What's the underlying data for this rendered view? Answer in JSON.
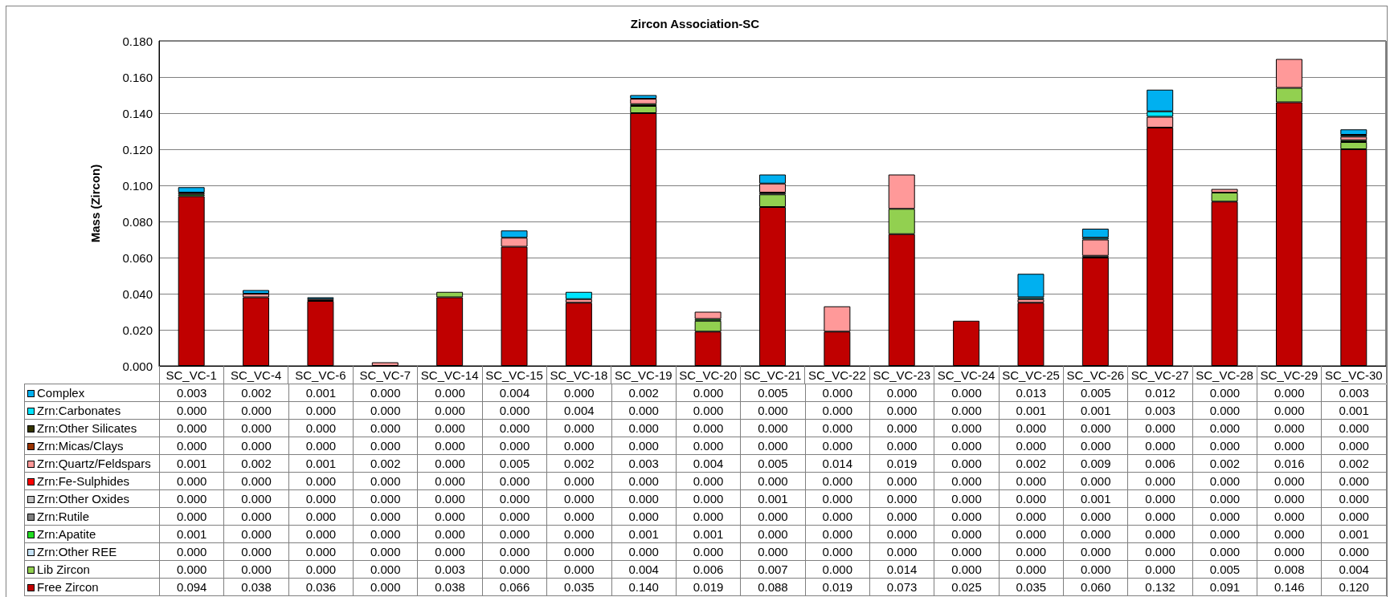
{
  "chart_data": {
    "type": "bar",
    "title": "Zircon Association-SC",
    "ylabel": "Mass (Zircon)",
    "categories": [
      "SC_VC-1",
      "SC_VC-4",
      "SC_VC-6",
      "SC_VC-7",
      "SC_VC-14",
      "SC_VC-15",
      "SC_VC-18",
      "SC_VC-19",
      "SC_VC-20",
      "SC_VC-21",
      "SC_VC-22",
      "SC_VC-23",
      "SC_VC-24",
      "SC_VC-25",
      "SC_VC-26",
      "SC_VC-27",
      "SC_VC-28",
      "SC_VC-29",
      "SC_VC-30"
    ],
    "stacked": true,
    "grid": "y",
    "legend": "bottom left",
    "ylim": [
      0,
      0.18
    ],
    "yticks": [
      {
        "value": 0,
        "label": "0.000"
      },
      {
        "value": 0.02,
        "label": "0.020"
      },
      {
        "value": 0.04,
        "label": "0.040"
      },
      {
        "value": 0.06,
        "label": "0.060"
      },
      {
        "value": 0.08,
        "label": "0.080"
      },
      {
        "value": 0.1,
        "label": "0.100"
      },
      {
        "value": 0.12,
        "label": "0.120"
      },
      {
        "value": 0.14,
        "label": "0.140"
      },
      {
        "value": 0.16,
        "label": "0.160"
      },
      {
        "value": 0.18,
        "label": "0.180"
      }
    ],
    "series": [
      {
        "name": "Free Zircon",
        "color": "#c00000",
        "values": [
          0.094,
          0.038,
          0.036,
          0,
          0.038,
          0.066,
          0.035,
          0.14,
          0.019,
          0.088,
          0.019,
          0.073,
          0.025,
          0.035,
          0.06,
          0.132,
          0.091,
          0.146,
          0.12
        ],
        "value_labels": [
          "0.094",
          "0.038",
          "0.036",
          "0.000",
          "0.038",
          "0.066",
          "0.035",
          "0.140",
          "0.019",
          "0.088",
          "0.019",
          "0.073",
          "0.025",
          "0.035",
          "0.060",
          "0.132",
          "0.091",
          "0.146",
          "0.120"
        ]
      },
      {
        "name": "Lib Zircon",
        "color": "#92d050",
        "values": [
          0,
          0,
          0,
          0,
          0.003,
          0,
          0,
          0.004,
          0.006,
          0.007,
          0,
          0.014,
          0,
          0,
          0,
          0,
          0.005,
          0.008,
          0.004
        ],
        "value_labels": [
          "0.000",
          "0.000",
          "0.000",
          "0.000",
          "0.003",
          "0.000",
          "0.000",
          "0.004",
          "0.006",
          "0.007",
          "0.000",
          "0.014",
          "0.000",
          "0.000",
          "0.000",
          "0.000",
          "0.005",
          "0.008",
          "0.004"
        ]
      },
      {
        "name": "Zrn:Other REE",
        "color": "#c6e2f7",
        "values": [
          0,
          0,
          0,
          0,
          0,
          0,
          0,
          0,
          0,
          0,
          0,
          0,
          0,
          0,
          0,
          0,
          0,
          0,
          0
        ],
        "value_labels": [
          "0.000",
          "0.000",
          "0.000",
          "0.000",
          "0.000",
          "0.000",
          "0.000",
          "0.000",
          "0.000",
          "0.000",
          "0.000",
          "0.000",
          "0.000",
          "0.000",
          "0.000",
          "0.000",
          "0.000",
          "0.000",
          "0.000"
        ]
      },
      {
        "name": "Zrn:Apatite",
        "color": "#22dd22",
        "values": [
          0.001,
          0,
          0,
          0,
          0,
          0,
          0,
          0.001,
          0.001,
          0,
          0,
          0,
          0,
          0,
          0,
          0,
          0,
          0,
          0.001
        ],
        "value_labels": [
          "0.001",
          "0.000",
          "0.000",
          "0.000",
          "0.000",
          "0.000",
          "0.000",
          "0.001",
          "0.001",
          "0.000",
          "0.000",
          "0.000",
          "0.000",
          "0.000",
          "0.000",
          "0.000",
          "0.000",
          "0.000",
          "0.001"
        ]
      },
      {
        "name": "Zrn:Rutile",
        "color": "#808080",
        "values": [
          0,
          0,
          0,
          0,
          0,
          0,
          0,
          0,
          0,
          0,
          0,
          0,
          0,
          0,
          0,
          0,
          0,
          0,
          0
        ],
        "value_labels": [
          "0.000",
          "0.000",
          "0.000",
          "0.000",
          "0.000",
          "0.000",
          "0.000",
          "0.000",
          "0.000",
          "0.000",
          "0.000",
          "0.000",
          "0.000",
          "0.000",
          "0.000",
          "0.000",
          "0.000",
          "0.000",
          "0.000"
        ]
      },
      {
        "name": "Zrn:Other Oxides",
        "color": "#c0c0c0",
        "values": [
          0,
          0,
          0,
          0,
          0,
          0,
          0,
          0,
          0,
          0.001,
          0,
          0,
          0,
          0,
          0.001,
          0,
          0,
          0,
          0
        ],
        "value_labels": [
          "0.000",
          "0.000",
          "0.000",
          "0.000",
          "0.000",
          "0.000",
          "0.000",
          "0.000",
          "0.000",
          "0.001",
          "0.000",
          "0.000",
          "0.000",
          "0.000",
          "0.001",
          "0.000",
          "0.000",
          "0.000",
          "0.000"
        ]
      },
      {
        "name": "Zrn:Fe-Sulphides",
        "color": "#ff0000",
        "values": [
          0,
          0,
          0,
          0,
          0,
          0,
          0,
          0,
          0,
          0,
          0,
          0,
          0,
          0,
          0,
          0,
          0,
          0,
          0
        ],
        "value_labels": [
          "0.000",
          "0.000",
          "0.000",
          "0.000",
          "0.000",
          "0.000",
          "0.000",
          "0.000",
          "0.000",
          "0.000",
          "0.000",
          "0.000",
          "0.000",
          "0.000",
          "0.000",
          "0.000",
          "0.000",
          "0.000",
          "0.000"
        ]
      },
      {
        "name": "Zrn:Quartz/Feldspars",
        "color": "#ff9999",
        "values": [
          0.001,
          0.002,
          0.001,
          0.002,
          0,
          0.005,
          0.002,
          0.003,
          0.004,
          0.005,
          0.014,
          0.019,
          0,
          0.002,
          0.009,
          0.006,
          0.002,
          0.016,
          0.002
        ],
        "value_labels": [
          "0.001",
          "0.002",
          "0.001",
          "0.002",
          "0.000",
          "0.005",
          "0.002",
          "0.003",
          "0.004",
          "0.005",
          "0.014",
          "0.019",
          "0.000",
          "0.002",
          "0.009",
          "0.006",
          "0.002",
          "0.016",
          "0.002"
        ]
      },
      {
        "name": "Zrn:Micas/Clays",
        "color": "#993300",
        "values": [
          0,
          0,
          0,
          0,
          0,
          0,
          0,
          0,
          0,
          0,
          0,
          0,
          0,
          0,
          0,
          0,
          0,
          0,
          0
        ],
        "value_labels": [
          "0.000",
          "0.000",
          "0.000",
          "0.000",
          "0.000",
          "0.000",
          "0.000",
          "0.000",
          "0.000",
          "0.000",
          "0.000",
          "0.000",
          "0.000",
          "0.000",
          "0.000",
          "0.000",
          "0.000",
          "0.000",
          "0.000"
        ]
      },
      {
        "name": "Zrn:Other Silicates",
        "color": "#333300",
        "values": [
          0,
          0,
          0,
          0,
          0,
          0,
          0,
          0,
          0,
          0,
          0,
          0,
          0,
          0,
          0,
          0,
          0,
          0,
          0
        ],
        "value_labels": [
          "0.000",
          "0.000",
          "0.000",
          "0.000",
          "0.000",
          "0.000",
          "0.000",
          "0.000",
          "0.000",
          "0.000",
          "0.000",
          "0.000",
          "0.000",
          "0.000",
          "0.000",
          "0.000",
          "0.000",
          "0.000",
          "0.000"
        ]
      },
      {
        "name": "Zrn:Carbonates",
        "color": "#00e5ff",
        "values": [
          0,
          0,
          0,
          0,
          0,
          0,
          0.004,
          0,
          0,
          0,
          0,
          0,
          0,
          0.001,
          0.001,
          0.003,
          0,
          0,
          0.001
        ],
        "value_labels": [
          "0.000",
          "0.000",
          "0.000",
          "0.000",
          "0.000",
          "0.000",
          "0.004",
          "0.000",
          "0.000",
          "0.000",
          "0.000",
          "0.000",
          "0.000",
          "0.001",
          "0.001",
          "0.003",
          "0.000",
          "0.000",
          "0.001"
        ]
      },
      {
        "name": "Complex",
        "color": "#00b0f0",
        "values": [
          0.003,
          0.002,
          0.001,
          0,
          0,
          0.004,
          0,
          0.002,
          0,
          0.005,
          0,
          0,
          0,
          0.013,
          0.005,
          0.012,
          0,
          0,
          0.003
        ],
        "value_labels": [
          "0.003",
          "0.002",
          "0.001",
          "0.000",
          "0.000",
          "0.004",
          "0.000",
          "0.002",
          "0.000",
          "0.005",
          "0.000",
          "0.000",
          "0.000",
          "0.013",
          "0.005",
          "0.012",
          "0.000",
          "0.000",
          "0.003"
        ]
      }
    ]
  }
}
